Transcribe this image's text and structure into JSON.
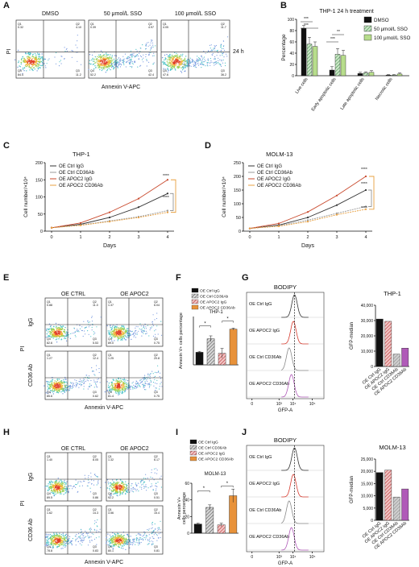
{
  "panels": {
    "A": {
      "label": "A",
      "titles": [
        "DMSO",
        "50 μmol/L SSO",
        "100 μmol/L SSO"
      ],
      "side_label": "24 h",
      "xlabel": "Annexin V-APC",
      "ylabel": "PI",
      "quadrants": [
        {
          "q1": "0.32",
          "q2": "4.10",
          "q3": "11.2",
          "q4": "84.4"
        },
        {
          "q1": "0.39",
          "q2": "4.97",
          "q3": "42.4",
          "q4": "52.2"
        },
        {
          "q1": "4.05",
          "q2": "11.7",
          "q3": "36.2",
          "q4": "47.6"
        }
      ]
    },
    "B": {
      "label": "B"
    },
    "C": {
      "label": "C"
    },
    "D": {
      "label": "D"
    },
    "E": {
      "label": "E",
      "col_titles": [
        "OE CTRL",
        "OE APOC2"
      ],
      "row_labels": [
        "IgG",
        "CD36 Ab"
      ],
      "ylabel": "PI",
      "xlabel": "Annexin V-APC",
      "quadrants": [
        {
          "q1": "0.88",
          "q2": "11.0",
          "q3": "5.53",
          "q4": "82.6"
        },
        {
          "q1": "1.37",
          "q2": "6.04",
          "q3": "0.75",
          "q4": "89.0"
        },
        {
          "q1": "1.27",
          "q2": "12.4",
          "q3": "0.62",
          "q4": "85.6"
        },
        {
          "q1": "1.25",
          "q2": "20.8",
          "q3": "0.75",
          "q4": "81.4"
        }
      ]
    },
    "F": {
      "label": "F"
    },
    "G": {
      "label": "G",
      "title": "BODIPY",
      "tracks": [
        "OE Ctrl IgG",
        "OE APOC2 IgG",
        "OE Ctrl CD36Ab",
        "OE APOC2 CD36Ab"
      ],
      "xlabel": "GFP-A",
      "ticks": [
        "0",
        "10³",
        "10⁴",
        "10⁵"
      ]
    },
    "H": {
      "label": "H",
      "col_titles": [
        "OE CTRL",
        "OE APOC2"
      ],
      "row_labels": [
        "IgG",
        "CD36 Ab"
      ],
      "ylabel": "PI",
      "xlabel": "Annexin V-APC",
      "quadrants": [
        {
          "q1": "1.40",
          "q2": "8.05",
          "q3": "0.86",
          "q4": "89.5"
        },
        {
          "q1": "1.32",
          "q2": "6.17",
          "q3": "0.51",
          "q4": "92.2"
        },
        {
          "q1": "1.62",
          "q2": "14.3",
          "q3": "0.83",
          "q4": "78.8"
        },
        {
          "q1": "3.56",
          "q2": "15.4",
          "q3": "0.81",
          "q4": "80.1"
        }
      ]
    },
    "I": {
      "label": "I"
    },
    "J": {
      "label": "J",
      "title": "BODIPY",
      "tracks": [
        "OE Ctrl IgG",
        "OE APOC2 IgG",
        "OE Ctrl CD36Ab",
        "OE APOC2 CD36Ab"
      ],
      "xlabel": "GFP-A",
      "ticks": [
        "0",
        "10³",
        "10⁴",
        "10⁵"
      ]
    }
  },
  "colors": {
    "black": "#111111",
    "hatched_green": "#8cc58f",
    "light_green": "#b7dd8c",
    "grey": "#9a9a9a",
    "red_dot": "#c94a4a",
    "orange": "#e8923a",
    "purple": "#b05ab8",
    "bracket_orange": "#e8a040"
  },
  "chart_data": [
    {
      "panel": "B",
      "type": "bar",
      "title": "THP-1 24 h treatment",
      "ylabel": "Percentage",
      "categories": [
        "Live cells",
        "Early apoptotic cells",
        "Late apoptotic cells",
        "Necrotic cells"
      ],
      "series": [
        {
          "name": "DMSO",
          "values": [
            84,
            10,
            4,
            1
          ]
        },
        {
          "name": "50 μmol/L SSO",
          "values": [
            56,
            38,
            5,
            1
          ]
        },
        {
          "name": "100 μmol/L SSO",
          "values": [
            52,
            36,
            6,
            3
          ]
        }
      ],
      "errors": [
        [
          5,
          6,
          2,
          1
        ],
        [
          12,
          10,
          2,
          1
        ],
        [
          8,
          9,
          3,
          2
        ]
      ],
      "ylim": [
        0,
        100
      ],
      "yticks": [
        0,
        20,
        40,
        60,
        80,
        100
      ],
      "significance": [
        "***",
        "***",
        "***",
        "**"
      ]
    },
    {
      "panel": "C",
      "type": "line",
      "title": "THP-1",
      "xlabel": "Days",
      "ylabel": "Cell number/×10⁴",
      "x": [
        0,
        1,
        2,
        3,
        4
      ],
      "series": [
        {
          "name": "OE Ctrl IgG",
          "values": [
            10,
            20,
            40,
            70,
            110
          ]
        },
        {
          "name": "OE Ctrl CD36Ab",
          "values": [
            10,
            18,
            30,
            42,
            60
          ]
        },
        {
          "name": "OE APOC2 IgG",
          "values": [
            10,
            24,
            55,
            95,
            150
          ]
        },
        {
          "name": "OE APOC2 CD36Ab",
          "values": [
            10,
            17,
            28,
            40,
            55
          ]
        }
      ],
      "ylim": [
        0,
        200
      ],
      "yticks": [
        0,
        50,
        100,
        150,
        200
      ],
      "significance": [
        "****",
        "****"
      ]
    },
    {
      "panel": "D",
      "type": "line",
      "title": "MOLM-13",
      "xlabel": "Days",
      "ylabel": "Cell number/×10⁴",
      "x": [
        0,
        1,
        2,
        3,
        4
      ],
      "series": [
        {
          "name": "OE Ctrl IgG",
          "values": [
            10,
            22,
            50,
            95,
            150
          ]
        },
        {
          "name": "OE Ctrl CD36Ab",
          "values": [
            10,
            20,
            40,
            65,
            90
          ]
        },
        {
          "name": "OE APOC2 IgG",
          "values": [
            10,
            28,
            70,
            130,
            200
          ]
        },
        {
          "name": "OE APOC2 CD36Ab",
          "values": [
            10,
            18,
            35,
            60,
            80
          ]
        }
      ],
      "ylim": [
        0,
        250
      ],
      "yticks": [
        0,
        50,
        100,
        150,
        200,
        250
      ],
      "significance": [
        "****",
        "****",
        "****"
      ]
    },
    {
      "panel": "F",
      "type": "bar",
      "title": "THP-1",
      "ylabel": "Annexin V+ cells percentage",
      "categories": [
        "OE Ctrl IgG",
        "OE Ctrl CD36Ab",
        "OE APOC2 IgG",
        "OE APOC2 CD36Ab"
      ],
      "values": [
        13,
        27,
        12,
        37
      ],
      "errors": [
        1,
        3,
        5,
        1
      ],
      "ylim": [
        0,
        50
      ],
      "significance": [
        "*",
        "*"
      ]
    },
    {
      "panel": "G",
      "type": "bar",
      "title": "THP-1",
      "ylabel": "GFP-median",
      "categories": [
        "OE Ctrl IgG",
        "OE APOC2 IgG",
        "OE Ctrl CD36Ab",
        "OE APOC2 CD36Ab"
      ],
      "values": [
        31000,
        29500,
        8000,
        12000
      ],
      "ylim": [
        0,
        40000
      ],
      "yticks": [
        0,
        10000,
        20000,
        30000,
        40000
      ],
      "yticklabels": [
        "0",
        "10,000",
        "20,000",
        "30,000",
        "40,000"
      ]
    },
    {
      "panel": "I",
      "type": "bar",
      "title": "MOLM-13",
      "ylabel": "Annexin V+ cells percentage",
      "categories": [
        "OE Ctrl IgG",
        "OE Ctrl CD36Ab",
        "OE APOC2 IgG",
        "OE APOC2 CD36Ab"
      ],
      "values": [
        11,
        31,
        10,
        45
      ],
      "errors": [
        1,
        3,
        2,
        8
      ],
      "ylim": [
        0,
        60
      ],
      "yticks": [
        0,
        20,
        40,
        60
      ],
      "significance": [
        "*",
        "*"
      ]
    },
    {
      "panel": "J",
      "type": "bar",
      "title": "MOLM-13",
      "ylabel": "GFP-median",
      "categories": [
        "OE Ctrl IgG",
        "OE APOC2 IgG",
        "OE Ctrl CD36Ab",
        "OE APOC2 CD36Ab"
      ],
      "values": [
        19500,
        20500,
        9500,
        12800
      ],
      "ylim": [
        0,
        25000
      ],
      "yticks": [
        0,
        5000,
        10000,
        15000,
        20000,
        25000
      ],
      "yticklabels": [
        "0",
        "5,000",
        "10,000",
        "15,000",
        "20,000",
        "25,000"
      ]
    }
  ]
}
